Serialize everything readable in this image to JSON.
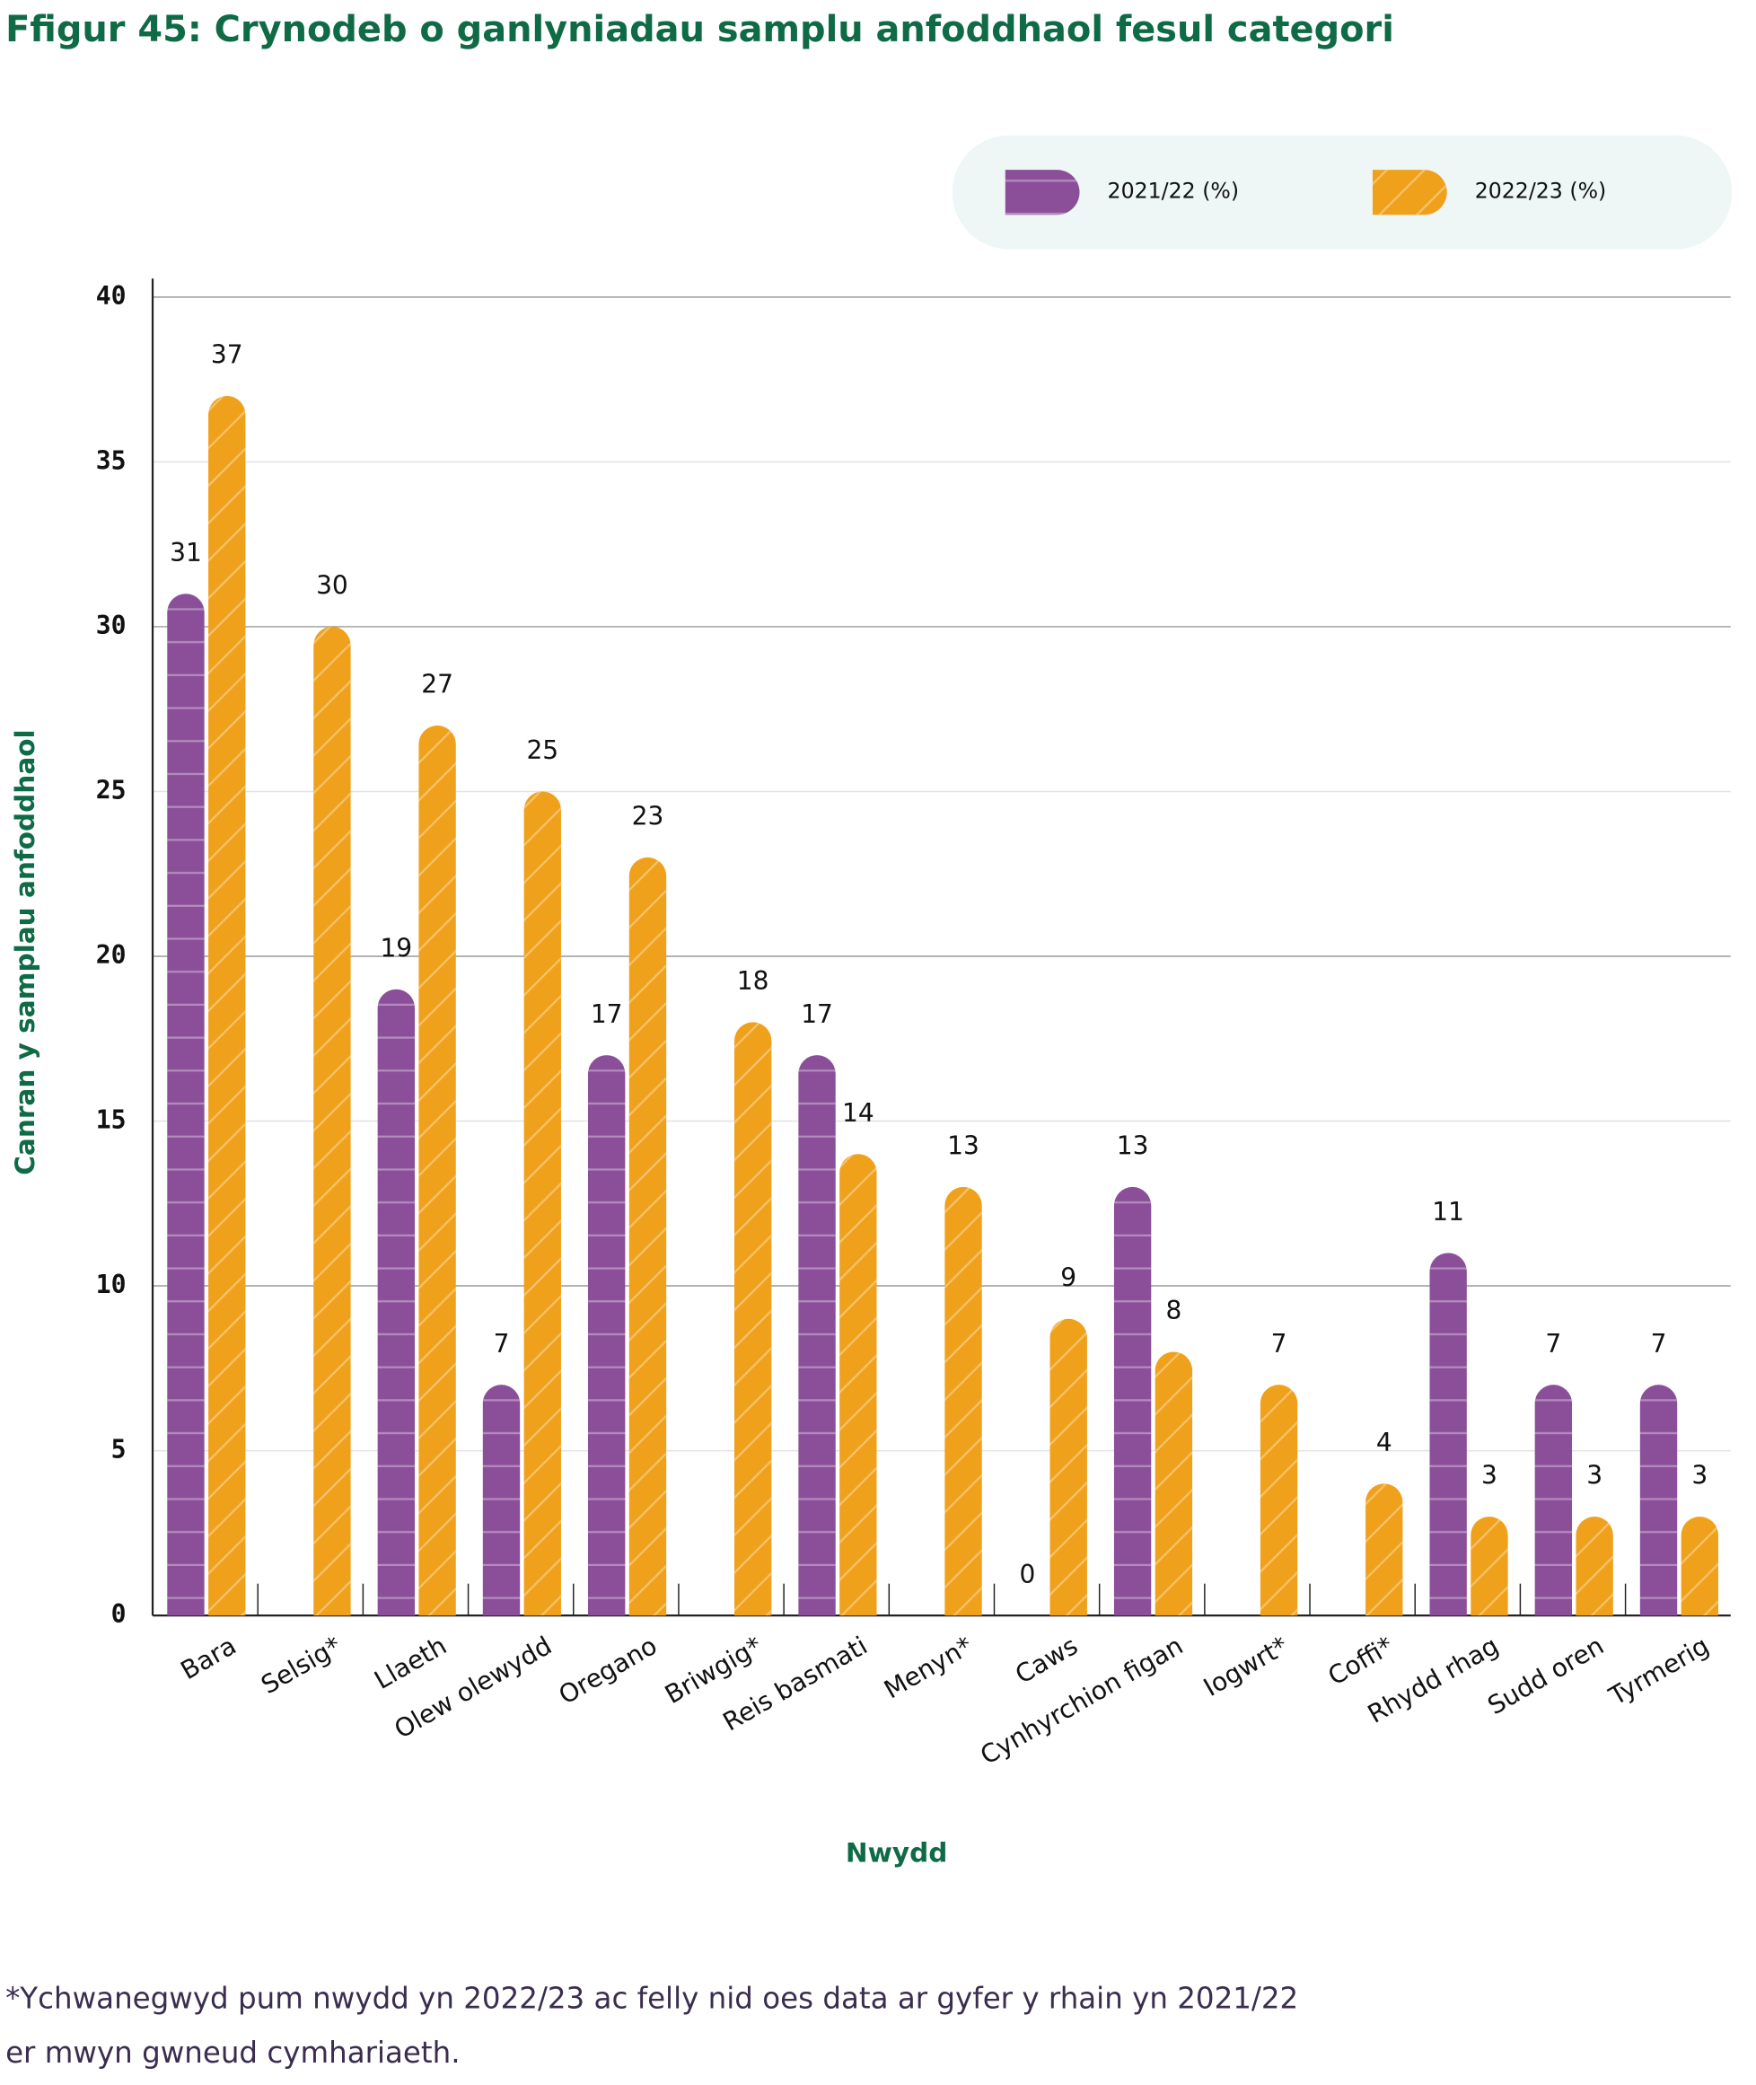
{
  "chart_data": {
    "type": "bar",
    "title": "Ffigur 45: Crynodeb o ganlyniadau samplu anfoddhaol fesul categori",
    "categories": [
      "Bara",
      "Selsig*",
      "Llaeth",
      "Olew olewydd",
      "Oregano",
      "Briwgig*",
      "Reis basmati",
      "Menyn*",
      "Caws",
      "Cynhyrchion figan",
      "Iogwrt*",
      "Coffi*",
      "Rhydd rhag",
      "Sudd oren",
      "Tyrmerig"
    ],
    "series": [
      {
        "name": "2021/22 (%)",
        "color": "#8b4f9a",
        "values": [
          31,
          null,
          19,
          7,
          17,
          null,
          17,
          null,
          0,
          13,
          null,
          null,
          11,
          7,
          7
        ]
      },
      {
        "name": "2022/23 (%)",
        "color": "#f0a11c",
        "values": [
          37,
          30,
          27,
          25,
          23,
          18,
          14,
          13,
          9,
          8,
          7,
          4,
          3,
          3,
          3
        ]
      }
    ],
    "ylim": [
      0,
      40
    ],
    "yticks": [
      0,
      5,
      10,
      15,
      20,
      25,
      30,
      35,
      40
    ],
    "y_label": "Canran y samplau anfoddhaol",
    "x_label": "Nwydd",
    "grid": true,
    "footnote": [
      "*Ychwanegwyd pum nwydd yn 2022/23 ac felly nid oes data ar gyfer y rhain yn 2021/22",
      "er mwyn gwneud cymhariaeth."
    ]
  }
}
